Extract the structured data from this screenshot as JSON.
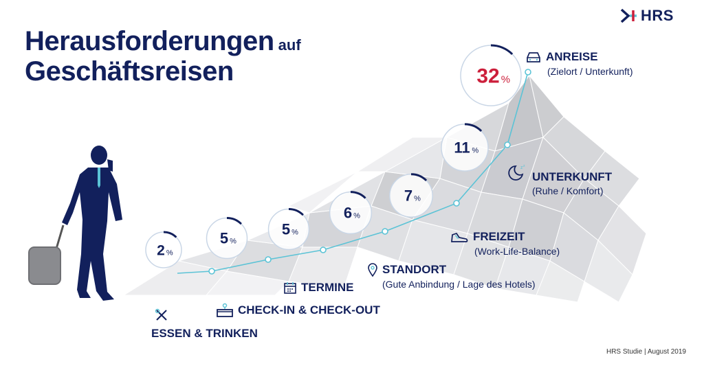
{
  "title": {
    "line1": "Herausforderungen",
    "line1_suffix": "auf",
    "line2": "Geschäftsreisen"
  },
  "logo": {
    "text": "HRS"
  },
  "footer": {
    "source": "HRS Studie | August 2019"
  },
  "colors": {
    "navy": "#12205c",
    "red": "#cc1f3b",
    "accent": "#5bc3d6"
  },
  "chart_data": {
    "type": "line",
    "categories": [
      "ESSEN & TRINKEN",
      "CHECK-IN & CHECK-OUT",
      "TERMINE",
      "STANDORT",
      "FREIZEIT",
      "UNTERKUNFT",
      "ANREISE"
    ],
    "values": [
      2,
      5,
      5,
      6,
      7,
      11,
      32
    ],
    "unit": "%",
    "bubbles": [
      {
        "value": "2",
        "unit": "%"
      },
      {
        "value": "5",
        "unit": "%"
      },
      {
        "value": "5",
        "unit": "%"
      },
      {
        "value": "6",
        "unit": "%"
      },
      {
        "value": "7",
        "unit": "%"
      },
      {
        "value": "11",
        "unit": "%"
      },
      {
        "value": "32",
        "unit": "%"
      }
    ],
    "labels": [
      {
        "heading": "ESSEN & TRINKEN",
        "sub": "",
        "icon": "utensils-icon"
      },
      {
        "heading": "CHECK-IN & CHECK-OUT",
        "sub": "",
        "icon": "reception-desk-icon"
      },
      {
        "heading": "TERMINE",
        "sub": "",
        "icon": "calendar-icon"
      },
      {
        "heading": "STANDORT",
        "sub": "(Gute Anbindung / Lage des Hotels)",
        "icon": "map-pin-icon"
      },
      {
        "heading": "FREIZEIT",
        "sub": "(Work-Life-Balance)",
        "icon": "sneaker-icon"
      },
      {
        "heading": "UNTERKUNFT",
        "sub": "(Ruhe / Komfort)",
        "icon": "moon-icon"
      },
      {
        "heading": "ANREISE",
        "sub": "(Zielort / Unterkunft)",
        "icon": "car-icon"
      }
    ]
  }
}
